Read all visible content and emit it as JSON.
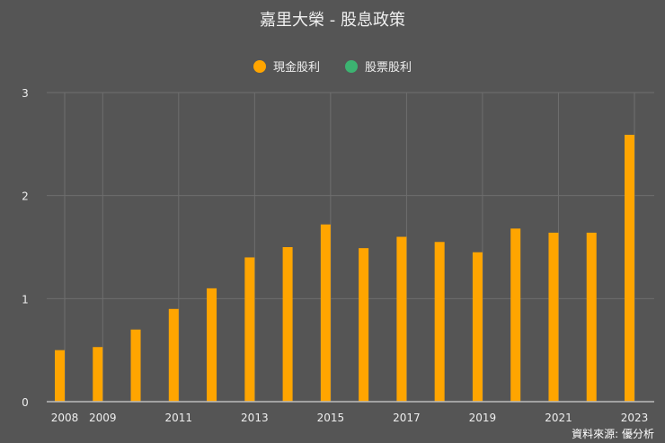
{
  "chart_data": {
    "type": "bar",
    "title": "嘉里大榮 - 股息政策",
    "categories": [
      "2008",
      "2009",
      "2010",
      "2011",
      "2012",
      "2013",
      "2014",
      "2015",
      "2016",
      "2017",
      "2018",
      "2019",
      "2020",
      "2021",
      "2022",
      "2023"
    ],
    "x_tick_labels": [
      "2008",
      "2009",
      "2011",
      "2013",
      "2015",
      "2017",
      "2019",
      "2021",
      "2023"
    ],
    "series": [
      {
        "name": "現金股利",
        "color": "#FFA500",
        "values": [
          0.5,
          0.53,
          0.7,
          0.9,
          1.1,
          1.4,
          1.5,
          1.72,
          1.49,
          1.6,
          1.55,
          1.45,
          1.68,
          1.64,
          1.64,
          2.59
        ]
      },
      {
        "name": "股票股利",
        "color": "#3CB371",
        "values": [
          0,
          0,
          0,
          0,
          0,
          0,
          0,
          0,
          0,
          0,
          0,
          0,
          0,
          0,
          0,
          0
        ]
      }
    ],
    "ylim": [
      0,
      3
    ],
    "y_ticks": [
      "0",
      "1",
      "2",
      "3"
    ],
    "grid": true,
    "legend_position": "top"
  },
  "source": "資料來源: 優分析"
}
